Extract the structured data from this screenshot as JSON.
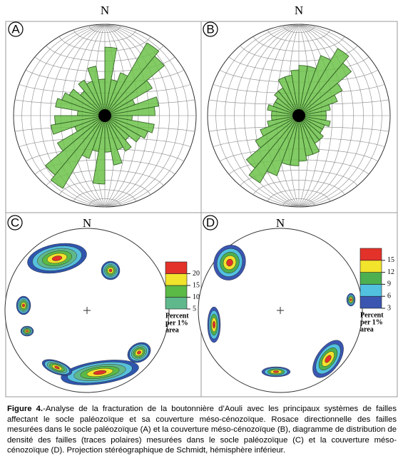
{
  "panels": [
    {
      "label": "A",
      "north": "N",
      "rose": [
        75,
        40,
        50,
        92,
        85,
        60,
        35,
        60,
        55,
        30,
        55,
        50,
        45,
        35,
        45,
        40,
        55,
        40
      ]
    },
    {
      "label": "B",
      "north": "N",
      "rose": [
        55,
        55,
        70,
        85,
        75,
        55,
        45,
        35,
        30,
        30,
        35,
        30,
        30,
        35,
        35,
        45,
        45,
        50
      ]
    },
    {
      "label": "C",
      "north": "N",
      "legend": {
        "title": [
          "Percent",
          "per 1%",
          "area"
        ],
        "ticks": [
          5,
          10,
          15,
          20
        ],
        "colors": [
          "#5fb88c",
          "#5bb946",
          "#f2e32c",
          "#e3322a"
        ]
      }
    },
    {
      "label": "D",
      "north": "N",
      "legend": {
        "title": [
          "Percent",
          "per 1%",
          "area"
        ],
        "ticks": [
          3,
          6,
          9,
          12,
          15
        ],
        "colors": [
          "#3a56b0",
          "#52c1e0",
          "#4caf50",
          "#f2e32c",
          "#e3322a"
        ]
      }
    }
  ],
  "caption": {
    "label": "Figure 4.",
    "text": "-Analyse de la fracturation de la boutonnière d’Aouli avec les principaux systèmes de failles affectant le socle paléozoïque et sa couverture méso-cénozoïque. Rosace directionnelle des failles mesurées dans le socle paléozoïque (A) et la couverture méso-cénozoïque (B), diagramme de distribution de densité des failles (traces polaires) mesurées dans le socle paléozoïque (C) et la couverture méso-cénozoïque (D). Projection stéréographique de Schmidt, hémisphère inférieur."
  }
}
